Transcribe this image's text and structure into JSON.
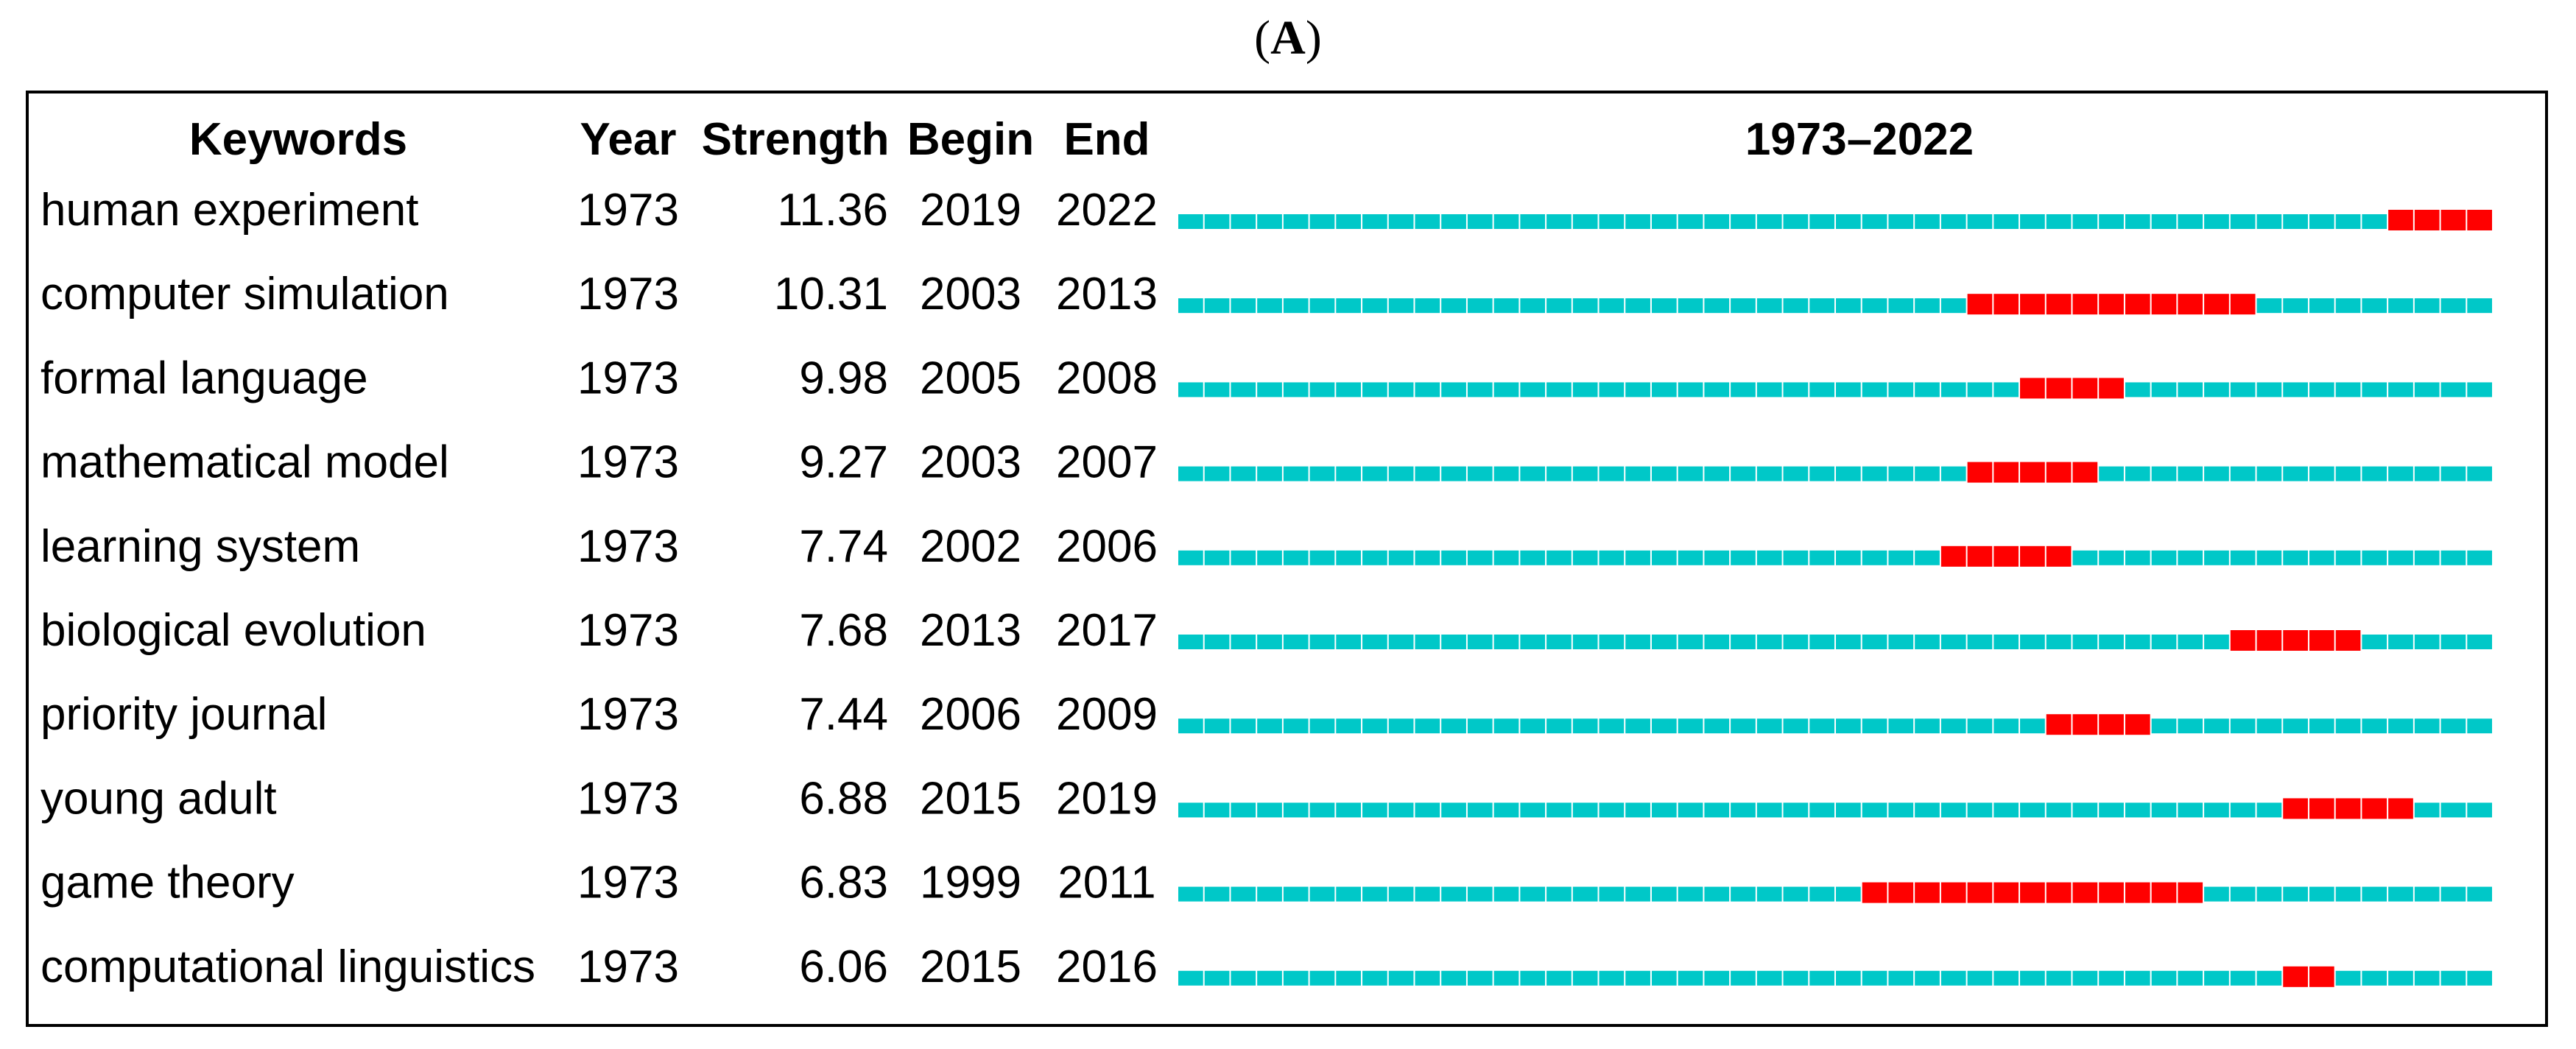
{
  "figure_label": {
    "open": "(",
    "letter": "A",
    "close": ")"
  },
  "chart_data": {
    "type": "table",
    "headers": {
      "keyword": "Keywords",
      "year": "Year",
      "strength": "Strength",
      "begin": "Begin",
      "end": "End",
      "timeline": "1973–2022"
    },
    "timeline_range": [
      1973,
      2022
    ],
    "colors": {
      "base": "#00C8C8",
      "burst": "#FF0000"
    },
    "rows": [
      {
        "keyword": "human experiment",
        "year": "1973",
        "strength": "11.36",
        "begin": "2019",
        "end": "2022"
      },
      {
        "keyword": "computer simulation",
        "year": "1973",
        "strength": "10.31",
        "begin": "2003",
        "end": "2013"
      },
      {
        "keyword": "formal language",
        "year": "1973",
        "strength": "9.98",
        "begin": "2005",
        "end": "2008"
      },
      {
        "keyword": "mathematical model",
        "year": "1973",
        "strength": "9.27",
        "begin": "2003",
        "end": "2007"
      },
      {
        "keyword": "learning system",
        "year": "1973",
        "strength": "7.74",
        "begin": "2002",
        "end": "2006"
      },
      {
        "keyword": "biological evolution",
        "year": "1973",
        "strength": "7.68",
        "begin": "2013",
        "end": "2017"
      },
      {
        "keyword": "priority journal",
        "year": "1973",
        "strength": "7.44",
        "begin": "2006",
        "end": "2009"
      },
      {
        "keyword": "young adult",
        "year": "1973",
        "strength": "6.88",
        "begin": "2015",
        "end": "2019"
      },
      {
        "keyword": "game theory",
        "year": "1973",
        "strength": "6.83",
        "begin": "1999",
        "end": "2011"
      },
      {
        "keyword": "computational linguistics",
        "year": "1973",
        "strength": "6.06",
        "begin": "2015",
        "end": "2016"
      }
    ]
  }
}
